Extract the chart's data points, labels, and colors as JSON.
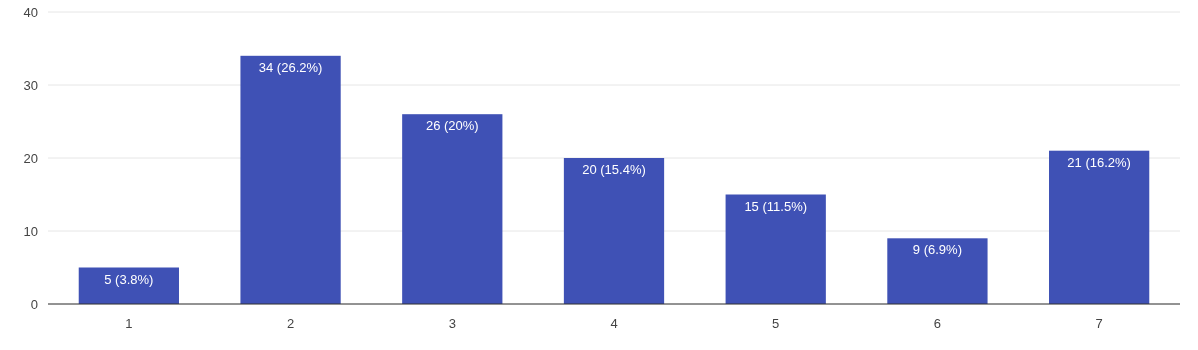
{
  "chart_data": {
    "type": "bar",
    "categories": [
      "1",
      "2",
      "3",
      "4",
      "5",
      "6",
      "7"
    ],
    "values": [
      5,
      34,
      26,
      20,
      15,
      9,
      21
    ],
    "value_labels": [
      "5 (3.8%)",
      "34 (26.2%)",
      "26 (20%)",
      "20 (15.4%)",
      "15 (11.5%)",
      "9 (6.9%)",
      "21 (16.2%)"
    ],
    "color": "#3f51b5",
    "ylim": [
      0,
      40
    ],
    "yticks": [
      0,
      10,
      20,
      30,
      40
    ],
    "grid": "y"
  }
}
